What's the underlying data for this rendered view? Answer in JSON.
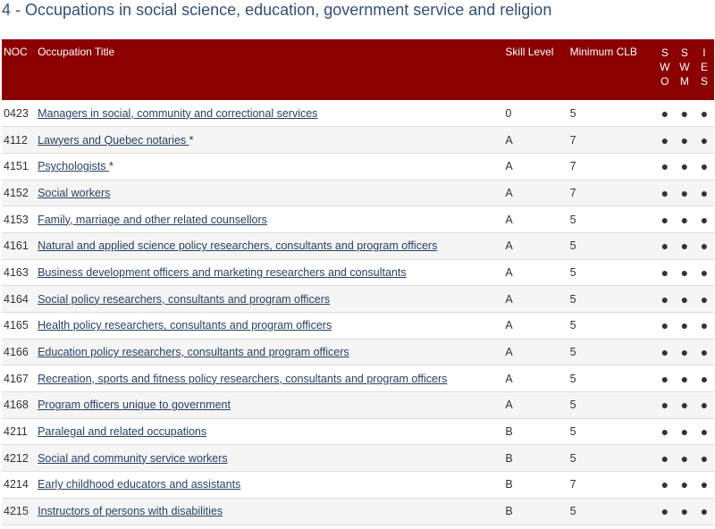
{
  "heading": "4 - Occupations in social science, education, government service and religion",
  "columns": {
    "noc": "NOC",
    "title": "Occupation Title",
    "skill": "Skill Level",
    "clb": "Minimum CLB",
    "sow": [
      "S",
      "W",
      "O"
    ],
    "swm": [
      "S",
      "W",
      "M"
    ],
    "ies": [
      "I",
      "E",
      "S"
    ]
  },
  "bullet": "●",
  "rows": [
    {
      "noc": "0423",
      "title": "Managers in social, community and correctional services",
      "note": "",
      "skill": "0",
      "clb": "5"
    },
    {
      "noc": "4112",
      "title": "Lawyers and Quebec notaries ",
      "note": "*",
      "skill": "A",
      "clb": "7"
    },
    {
      "noc": "4151",
      "title": "Psychologists ",
      "note": "*",
      "skill": "A",
      "clb": "7"
    },
    {
      "noc": "4152",
      "title": "Social workers",
      "note": "",
      "skill": "A",
      "clb": "7"
    },
    {
      "noc": "4153",
      "title": "Family, marriage and other related counsellors",
      "note": "",
      "skill": "A",
      "clb": "5"
    },
    {
      "noc": "4161",
      "title": "Natural and applied science policy researchers, consultants and program officers",
      "note": "",
      "skill": "A",
      "clb": "5"
    },
    {
      "noc": "4163",
      "title": "Business development officers and marketing researchers and consultants",
      "note": "",
      "skill": "A",
      "clb": "5"
    },
    {
      "noc": "4164",
      "title": "Social policy researchers, consultants and program officers",
      "note": "",
      "skill": "A",
      "clb": "5"
    },
    {
      "noc": "4165",
      "title": "Health policy researchers, consultants and program officers",
      "note": "",
      "skill": "A",
      "clb": "5"
    },
    {
      "noc": "4166",
      "title": "Education policy researchers, consultants and program officers",
      "note": "",
      "skill": "A",
      "clb": "5"
    },
    {
      "noc": "4167",
      "title": "Recreation, sports and fitness policy researchers, consultants and program officers",
      "note": "",
      "skill": "A",
      "clb": "5"
    },
    {
      "noc": "4168",
      "title": "Program officers unique to government",
      "note": "",
      "skill": "A",
      "clb": "5"
    },
    {
      "noc": "4211",
      "title": "Paralegal and related occupations",
      "note": "",
      "skill": "B",
      "clb": "5"
    },
    {
      "noc": "4212",
      "title": "Social and community service workers",
      "note": "",
      "skill": "B",
      "clb": "5"
    },
    {
      "noc": "4214",
      "title": "Early childhood educators and assistants",
      "note": "",
      "skill": "B",
      "clb": "7"
    },
    {
      "noc": "4215",
      "title": "Instructors of persons with disabilities",
      "note": "",
      "skill": "B",
      "clb": "5"
    }
  ]
}
